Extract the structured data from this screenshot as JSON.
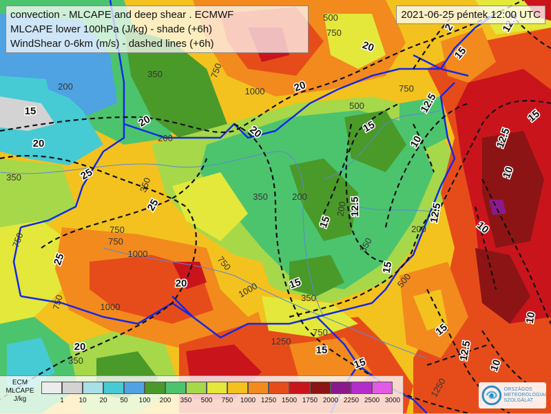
{
  "header": {
    "title_line1": "convection - MLCAPE and deep shear   .   ECMWF",
    "title_line2": "MLCAPE lower 100hPa (J/kg) - shade (+6h)",
    "title_line3": "WindShear 0-6km (m/s) - dashed lines (+6h)",
    "valid_time": "2021-06-25 péntek 12:00 UTC"
  },
  "legend": {
    "label_line1": "ECM",
    "label_line2": "MLCAPE",
    "label_line3": "J/kg",
    "bins": [
      {
        "v": "1",
        "color": "#ececec"
      },
      {
        "v": "10",
        "color": "#d3d3d3"
      },
      {
        "v": "20",
        "color": "#a9dfe6"
      },
      {
        "v": "50",
        "color": "#46cbd4"
      },
      {
        "v": "100",
        "color": "#4fa3e2"
      },
      {
        "v": "200",
        "color": "#4a9a2a"
      },
      {
        "v": "350",
        "color": "#4cc46e"
      },
      {
        "v": "500",
        "color": "#a6d84a"
      },
      {
        "v": "750",
        "color": "#e3e83a"
      },
      {
        "v": "1000",
        "color": "#f3c21e"
      },
      {
        "v": "1250",
        "color": "#f28a1e"
      },
      {
        "v": "1500",
        "color": "#e64c1a"
      },
      {
        "v": "1750",
        "color": "#c9141c"
      },
      {
        "v": "2000",
        "color": "#8c1414"
      },
      {
        "v": "2250",
        "color": "#8a1a8c"
      },
      {
        "v": "2500",
        "color": "#b32dcc"
      },
      {
        "v": "3000",
        "color": "#e25ae6"
      }
    ],
    "first_tick": ""
  },
  "logo": {
    "line1": "ORSZÁGOS",
    "line2": "METEOROLÓGIAI",
    "line3": "SZOLGÁLAT"
  },
  "cape_labels": [
    {
      "text": "500"
    },
    {
      "text": "750"
    },
    {
      "text": "1000"
    },
    {
      "text": "350"
    },
    {
      "text": "200"
    },
    {
      "text": "750"
    },
    {
      "text": "500"
    },
    {
      "text": "350"
    },
    {
      "text": "200"
    },
    {
      "text": "200"
    },
    {
      "text": "350"
    },
    {
      "text": "750"
    },
    {
      "text": "1000"
    },
    {
      "text": "750"
    },
    {
      "text": "1250"
    },
    {
      "text": "750"
    },
    {
      "text": "350"
    },
    {
      "text": "200"
    },
    {
      "text": "1000"
    },
    {
      "text": "750"
    },
    {
      "text": "350"
    },
    {
      "text": "750"
    },
    {
      "text": "1000"
    },
    {
      "text": "1250"
    },
    {
      "text": "750"
    },
    {
      "text": "350"
    },
    {
      "text": "200"
    },
    {
      "text": "350"
    },
    {
      "text": "500"
    },
    {
      "text": "750"
    }
  ],
  "shear_labels": [
    {
      "text": "20"
    },
    {
      "text": "15"
    },
    {
      "text": "20"
    },
    {
      "text": "25"
    },
    {
      "text": "25"
    },
    {
      "text": "25"
    },
    {
      "text": "20"
    },
    {
      "text": "20"
    },
    {
      "text": "20"
    },
    {
      "text": "20"
    },
    {
      "text": "20"
    },
    {
      "text": "15"
    },
    {
      "text": "15"
    },
    {
      "text": "15"
    },
    {
      "text": "15"
    },
    {
      "text": "15"
    },
    {
      "text": "12.5"
    },
    {
      "text": "12.5"
    },
    {
      "text": "10"
    },
    {
      "text": "12.5"
    },
    {
      "text": "10"
    },
    {
      "text": "12.5"
    },
    {
      "text": "10"
    },
    {
      "text": "15"
    },
    {
      "text": "12.5"
    },
    {
      "text": "10"
    },
    {
      "text": "15"
    },
    {
      "text": "15"
    },
    {
      "text": "2"
    },
    {
      "text": "15"
    },
    {
      "text": "12.5"
    },
    {
      "text": "10"
    }
  ],
  "colors": {
    "country_border": "#1428e6",
    "river": "#5c86d6",
    "shear_line": "#111111"
  }
}
